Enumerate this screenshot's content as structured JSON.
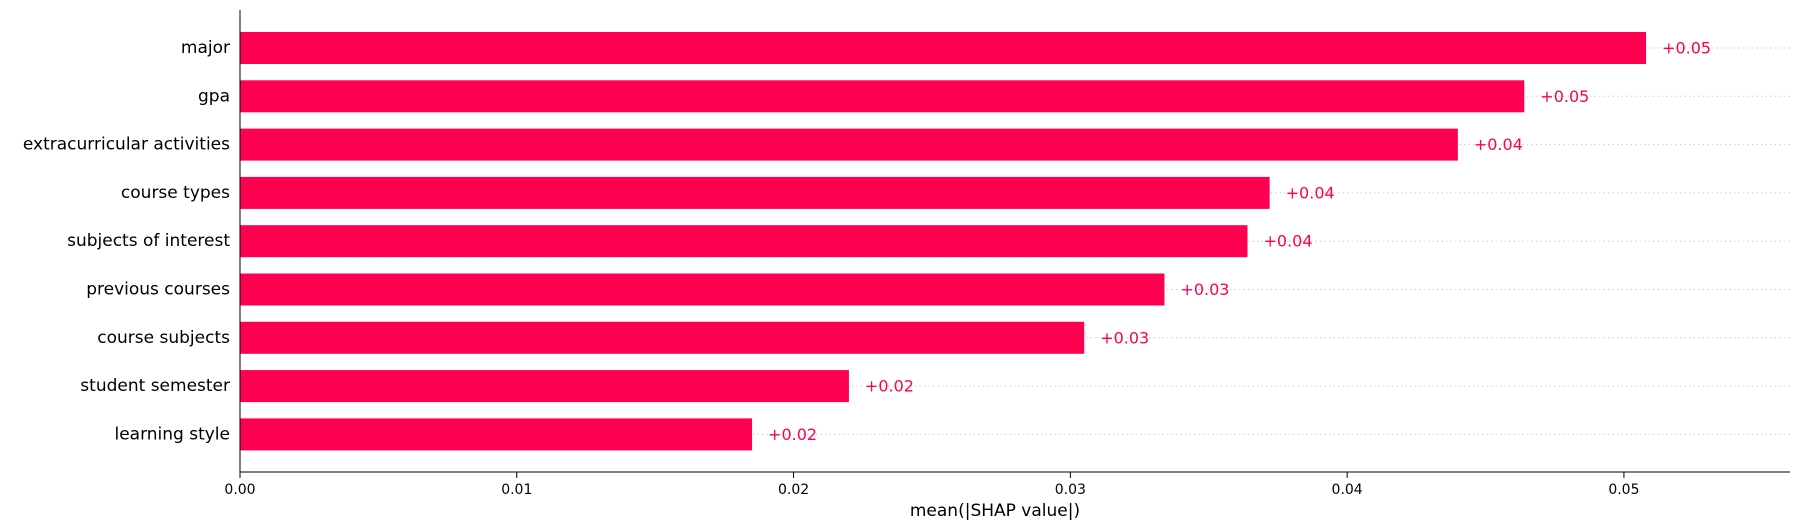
{
  "chart_data": {
    "type": "bar",
    "orientation": "horizontal",
    "title": "",
    "xlabel": "mean(|SHAP value|)",
    "ylabel": "",
    "xlim": [
      0,
      0.056
    ],
    "xticks": [
      "0.00",
      "0.01",
      "0.02",
      "0.03",
      "0.04",
      "0.05"
    ],
    "categories": [
      "major",
      "gpa",
      "extracurricular activities",
      "course types",
      "subjects of interest",
      "previous courses",
      "course subjects",
      "student semester",
      "learning style"
    ],
    "values": [
      0.0508,
      0.0464,
      0.044,
      0.0372,
      0.0364,
      0.0334,
      0.0305,
      0.022,
      0.0185
    ],
    "data_labels": [
      "+0.05",
      "+0.05",
      "+0.04",
      "+0.04",
      "+0.04",
      "+0.03",
      "+0.03",
      "+0.02",
      "+0.02"
    ],
    "bar_color": "#ff0051",
    "grid": "dotted row guides",
    "legend": "none"
  }
}
